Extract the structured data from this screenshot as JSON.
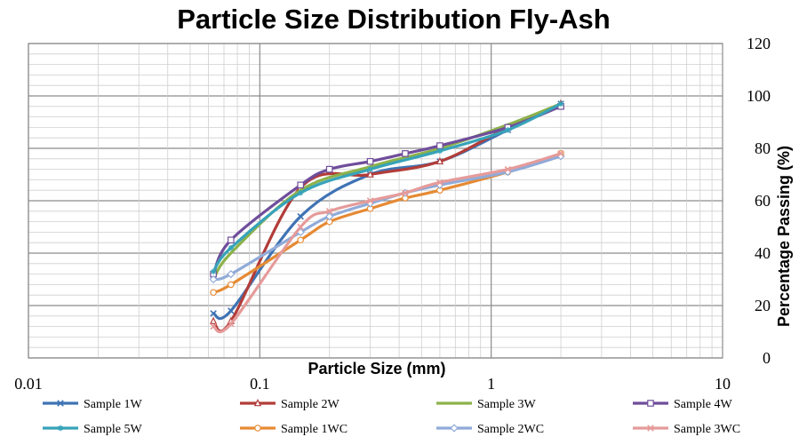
{
  "chart_data": {
    "type": "line",
    "title": "Particle Size Distribution Fly-Ash",
    "xlabel": "Particle Size (mm)",
    "ylabel": "Percentage Passing (%)",
    "x_scale": "log",
    "xlim": [
      0.01,
      10
    ],
    "ylim": [
      0,
      120
    ],
    "x_ticks": [
      0.01,
      0.1,
      1,
      10
    ],
    "x_tick_labels": [
      "0.01",
      "0.1",
      "1",
      "10"
    ],
    "y_ticks": [
      0,
      20,
      40,
      60,
      80,
      100,
      120
    ],
    "y_tick_labels": [
      "0",
      "20",
      "40",
      "60",
      "80",
      "100",
      "120"
    ],
    "grid": true,
    "legend_position": "bottom",
    "series": [
      {
        "name": "Sample 1W",
        "color": "#3f73b4",
        "marker": "x",
        "x": [
          0.063,
          0.075,
          0.15,
          0.3,
          0.6,
          1.18,
          2
        ],
        "y": [
          17,
          18,
          54,
          70,
          75,
          87,
          97
        ]
      },
      {
        "name": "Sample 2W",
        "color": "#b23d39",
        "marker": "triangle",
        "x": [
          0.063,
          0.075,
          0.15,
          0.3,
          0.6,
          1.18,
          2
        ],
        "y": [
          14,
          14,
          65,
          70,
          75,
          88,
          97
        ]
      },
      {
        "name": "Sample 3W",
        "color": "#8cb24a",
        "marker": "none",
        "x": [
          0.063,
          0.075,
          0.15,
          0.3,
          0.6,
          1.18,
          2
        ],
        "y": [
          30,
          40,
          64,
          73,
          80,
          89,
          97
        ]
      },
      {
        "name": "Sample 4W",
        "color": "#6f4d9b",
        "marker": "square",
        "x": [
          0.063,
          0.075,
          0.15,
          0.2,
          0.3,
          0.425,
          0.6,
          1.18,
          2
        ],
        "y": [
          32,
          45,
          66,
          72,
          75,
          78,
          81,
          88,
          96
        ]
      },
      {
        "name": "Sample 5W",
        "color": "#37a3b9",
        "marker": "star",
        "x": [
          0.063,
          0.075,
          0.15,
          0.3,
          0.6,
          1.18,
          2
        ],
        "y": [
          33,
          42,
          63,
          72,
          79,
          87,
          97
        ]
      },
      {
        "name": "Sample 1WC",
        "color": "#e68a34",
        "marker": "circle",
        "x": [
          0.063,
          0.075,
          0.15,
          0.2,
          0.3,
          0.425,
          0.6,
          1.18,
          2
        ],
        "y": [
          25,
          28,
          45,
          52,
          57,
          61,
          64,
          71,
          78
        ]
      },
      {
        "name": "Sample 2WC",
        "color": "#90abd8",
        "marker": "diamond",
        "x": [
          0.063,
          0.075,
          0.15,
          0.2,
          0.3,
          0.425,
          0.6,
          1.18,
          2
        ],
        "y": [
          30,
          32,
          48,
          54,
          59,
          63,
          66,
          71,
          77
        ]
      },
      {
        "name": "Sample 3WC",
        "color": "#e59b9a",
        "marker": "x",
        "x": [
          0.063,
          0.075,
          0.15,
          0.2,
          0.3,
          0.425,
          0.6,
          1.18,
          2
        ],
        "y": [
          12,
          13,
          50,
          56,
          60,
          63,
          67,
          72,
          78
        ]
      }
    ]
  }
}
